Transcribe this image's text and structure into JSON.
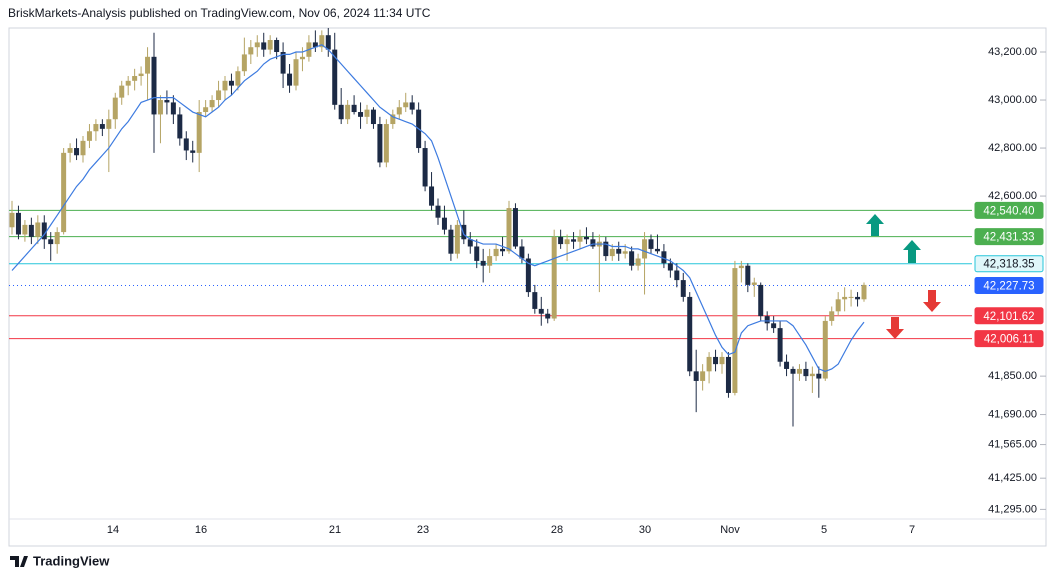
{
  "header": {
    "title": "BriskMarkets-Analysis published on TradingView.com, Nov 06, 2024 11:34 UTC"
  },
  "chart_data": {
    "type": "candlestick",
    "ylim": [
      41230,
      43300
    ],
    "yticks": [
      {
        "value": 43200,
        "label": "43,200.00"
      },
      {
        "value": 43000,
        "label": "43,000.00"
      },
      {
        "value": 42800,
        "label": "42,800.00"
      },
      {
        "value": 42600,
        "label": "42,600.00"
      },
      {
        "value": 41850,
        "label": "41,850.00"
      },
      {
        "value": 41690,
        "label": "41,690.00"
      },
      {
        "value": 41565,
        "label": "41,565.00"
      },
      {
        "value": 41425,
        "label": "41,425.00"
      },
      {
        "value": 41295,
        "label": "41,295.00"
      }
    ],
    "xtick_labels": [
      "14",
      "16",
      "21",
      "23",
      "28",
      "30",
      "Nov",
      "5",
      "7"
    ],
    "up_color": "#b5a464",
    "down_color": "#1c2a45",
    "ohlc": [
      [
        42470,
        42580,
        42440,
        42530
      ],
      [
        42530,
        42560,
        42420,
        42440
      ],
      [
        42440,
        42500,
        42410,
        42480
      ],
      [
        42480,
        42510,
        42400,
        42430
      ],
      [
        42430,
        42520,
        42400,
        42490
      ],
      [
        42490,
        42520,
        42380,
        42420
      ],
      [
        42420,
        42450,
        42330,
        42400
      ],
      [
        42400,
        42470,
        42360,
        42450
      ],
      [
        42450,
        42800,
        42440,
        42780
      ],
      [
        42780,
        42820,
        42740,
        42800
      ],
      [
        42800,
        42840,
        42750,
        42770
      ],
      [
        42770,
        42850,
        42740,
        42830
      ],
      [
        42830,
        42900,
        42800,
        42870
      ],
      [
        42870,
        42920,
        42830,
        42900
      ],
      [
        42900,
        42920,
        42850,
        42880
      ],
      [
        42880,
        42960,
        42700,
        42920
      ],
      [
        42920,
        43030,
        42880,
        43010
      ],
      [
        43010,
        43080,
        42980,
        43060
      ],
      [
        43060,
        43100,
        43020,
        43080
      ],
      [
        43080,
        43130,
        43040,
        43100
      ],
      [
        43100,
        43140,
        43060,
        43110
      ],
      [
        43110,
        43220,
        43000,
        43180
      ],
      [
        43180,
        43280,
        42780,
        42940
      ],
      [
        42940,
        43020,
        42820,
        43000
      ],
      [
        43000,
        43040,
        42940,
        42990
      ],
      [
        42990,
        43020,
        42900,
        42940
      ],
      [
        42940,
        42970,
        42810,
        42840
      ],
      [
        42840,
        42870,
        42750,
        42790
      ],
      [
        42790,
        42830,
        42740,
        42780
      ],
      [
        42780,
        43000,
        42700,
        42950
      ],
      [
        42950,
        43000,
        42930,
        42970
      ],
      [
        42970,
        43020,
        42950,
        43000
      ],
      [
        43000,
        43080,
        42970,
        43040
      ],
      [
        43040,
        43100,
        43000,
        43080
      ],
      [
        43080,
        43110,
        43020,
        43060
      ],
      [
        43060,
        43140,
        43040,
        43120
      ],
      [
        43120,
        43260,
        43100,
        43190
      ],
      [
        43190,
        43250,
        43150,
        43220
      ],
      [
        43220,
        43270,
        43180,
        43240
      ],
      [
        43240,
        43280,
        43180,
        43210
      ],
      [
        43210,
        43270,
        43190,
        43250
      ],
      [
        43250,
        43260,
        43170,
        43200
      ],
      [
        43200,
        43240,
        43050,
        43110
      ],
      [
        43110,
        43150,
        43030,
        43060
      ],
      [
        43060,
        43200,
        43040,
        43170
      ],
      [
        43170,
        43220,
        43120,
        43180
      ],
      [
        43180,
        43270,
        43160,
        43240
      ],
      [
        43240,
        43290,
        43200,
        43220
      ],
      [
        43220,
        43290,
        43200,
        43270
      ],
      [
        43270,
        43300,
        43180,
        43210
      ],
      [
        43210,
        43280,
        42960,
        42980
      ],
      [
        42980,
        43050,
        42900,
        42920
      ],
      [
        42920,
        43000,
        42900,
        42980
      ],
      [
        42980,
        43020,
        42940,
        42950
      ],
      [
        42950,
        42990,
        42880,
        42930
      ],
      [
        42930,
        42980,
        42900,
        42960
      ],
      [
        42960,
        42970,
        42880,
        42900
      ],
      [
        42900,
        42930,
        42720,
        42740
      ],
      [
        42740,
        42920,
        42720,
        42900
      ],
      [
        42900,
        42960,
        42880,
        42940
      ],
      [
        42940,
        43000,
        42920,
        42970
      ],
      [
        42970,
        43030,
        42950,
        42990
      ],
      [
        42990,
        43020,
        42940,
        42960
      ],
      [
        42960,
        42990,
        42780,
        42800
      ],
      [
        42800,
        42830,
        42620,
        42640
      ],
      [
        42640,
        42700,
        42540,
        42560
      ],
      [
        42560,
        42590,
        42480,
        42510
      ],
      [
        42510,
        42560,
        42440,
        42460
      ],
      [
        42460,
        42480,
        42330,
        42360
      ],
      [
        42360,
        42500,
        42340,
        42480
      ],
      [
        42480,
        42540,
        42400,
        42420
      ],
      [
        42420,
        42450,
        42360,
        42390
      ],
      [
        42390,
        42420,
        42300,
        42330
      ],
      [
        42330,
        42380,
        42240,
        42310
      ],
      [
        42310,
        42380,
        42280,
        42350
      ],
      [
        42350,
        42400,
        42330,
        42380
      ],
      [
        42380,
        42430,
        42350,
        42370
      ],
      [
        42370,
        42580,
        42360,
        42550
      ],
      [
        42550,
        42570,
        42380,
        42390
      ],
      [
        42390,
        42420,
        42320,
        42340
      ],
      [
        42340,
        42360,
        42180,
        42200
      ],
      [
        42200,
        42230,
        42110,
        42130
      ],
      [
        42130,
        42180,
        42060,
        42110
      ],
      [
        42110,
        42130,
        42070,
        42090
      ],
      [
        42090,
        42460,
        42080,
        42430
      ],
      [
        42430,
        42460,
        42380,
        42400
      ],
      [
        42400,
        42440,
        42330,
        42420
      ],
      [
        42420,
        42450,
        42380,
        42410
      ],
      [
        42410,
        42460,
        42380,
        42430
      ],
      [
        42430,
        42470,
        42400,
        42420
      ],
      [
        42420,
        42450,
        42380,
        42390
      ],
      [
        42390,
        42440,
        42200,
        42410
      ],
      [
        42410,
        42430,
        42330,
        42350
      ],
      [
        42350,
        42400,
        42330,
        42380
      ],
      [
        42380,
        42410,
        42330,
        42360
      ],
      [
        42360,
        42400,
        42340,
        42370
      ],
      [
        42370,
        42390,
        42290,
        42310
      ],
      [
        42310,
        42360,
        42290,
        42340
      ],
      [
        42340,
        42450,
        42190,
        42420
      ],
      [
        42420,
        42440,
        42360,
        42380
      ],
      [
        42380,
        42440,
        42360,
        42370
      ],
      [
        42370,
        42400,
        42300,
        42320
      ],
      [
        42320,
        42340,
        42260,
        42290
      ],
      [
        42290,
        42320,
        42220,
        42250
      ],
      [
        42250,
        42280,
        42160,
        42180
      ],
      [
        42180,
        42200,
        41850,
        41870
      ],
      [
        41870,
        41960,
        41700,
        41830
      ],
      [
        41830,
        41900,
        41790,
        41870
      ],
      [
        41870,
        41950,
        41820,
        41930
      ],
      [
        41930,
        41960,
        41870,
        41900
      ],
      [
        41900,
        41950,
        41860,
        41930
      ],
      [
        41930,
        41950,
        41760,
        41780
      ],
      [
        41780,
        42330,
        41770,
        42300
      ],
      [
        42300,
        42330,
        42240,
        42310
      ],
      [
        42310,
        42320,
        42200,
        42230
      ],
      [
        42230,
        42260,
        42180,
        42240
      ],
      [
        42230,
        42240,
        42080,
        42100
      ],
      [
        42100,
        42120,
        42040,
        42070
      ],
      [
        42070,
        42100,
        42030,
        42050
      ],
      [
        42050,
        42080,
        41890,
        41910
      ],
      [
        41910,
        41940,
        41850,
        41880
      ],
      [
        41880,
        41890,
        41640,
        41860
      ],
      [
        41860,
        41900,
        41830,
        41880
      ],
      [
        41880,
        41910,
        41830,
        41850
      ],
      [
        41850,
        41890,
        41780,
        41860
      ],
      [
        41860,
        41890,
        41760,
        41840
      ],
      [
        41840,
        42100,
        41830,
        42080
      ],
      [
        42080,
        42140,
        42060,
        42120
      ],
      [
        42120,
        42200,
        42100,
        42170
      ],
      [
        42170,
        42220,
        42120,
        42180
      ],
      [
        42180,
        42210,
        42140,
        42180
      ],
      [
        42180,
        42200,
        42140,
        42170
      ],
      [
        42170,
        42240,
        42160,
        42230
      ]
    ],
    "ma": {
      "color": "#3d7be0",
      "values": [
        42290,
        42320,
        42350,
        42380,
        42410,
        42440,
        42480,
        42520,
        42560,
        42600,
        42640,
        42670,
        42710,
        42740,
        42770,
        42800,
        42840,
        42880,
        42910,
        42950,
        42990,
        43000,
        43010,
        43010,
        43010,
        43010,
        42990,
        42970,
        42950,
        42940,
        42930,
        42950,
        42970,
        43000,
        43020,
        43050,
        43080,
        43100,
        43120,
        43150,
        43170,
        43180,
        43190,
        43190,
        43200,
        43200,
        43210,
        43220,
        43230,
        43210,
        43180,
        43150,
        43120,
        43090,
        43060,
        43030,
        43000,
        42970,
        42950,
        42930,
        42920,
        42910,
        42900,
        42880,
        42860,
        42830,
        42760,
        42680,
        42600,
        42520,
        42440,
        42420,
        42410,
        42400,
        42400,
        42400,
        42390,
        42380,
        42360,
        42340,
        42320,
        42310,
        42320,
        42330,
        42340,
        42350,
        42360,
        42370,
        42380,
        42390,
        42400,
        42400,
        42400,
        42390,
        42390,
        42390,
        42380,
        42380,
        42370,
        42360,
        42350,
        42340,
        42330,
        42310,
        42290,
        42260,
        42200,
        42140,
        42080,
        42020,
        41970,
        41940,
        41950,
        42030,
        42060,
        42070,
        42080,
        42080,
        42080,
        42080,
        42080,
        42060,
        42020,
        41980,
        41930,
        41880,
        41870,
        41880,
        41900,
        41950,
        42000,
        42040,
        42075
      ]
    },
    "levels": [
      {
        "value": 42540.4,
        "label": "42,540.40",
        "color": "#4caf50",
        "label_fill": "#4caf50",
        "text_color": "#ffffff"
      },
      {
        "value": 42431.33,
        "label": "42,431.33",
        "color": "#4caf50",
        "label_fill": "#4caf50",
        "text_color": "#ffffff"
      },
      {
        "value": 42318.35,
        "label": "42,318.35",
        "color": "#26c6da",
        "label_fill": "#e0f7fa",
        "text_color": "#131722"
      },
      {
        "value": 42227.73,
        "label": "42,227.73",
        "color": "#2962ff",
        "label_fill": "#2962ff",
        "text_color": "#ffffff",
        "dotted": true
      },
      {
        "value": 42101.62,
        "label": "42,101.62",
        "color": "#f23645",
        "label_fill": "#f23645",
        "text_color": "#ffffff"
      },
      {
        "value": 42006.11,
        "label": "42,006.11",
        "color": "#f23645",
        "label_fill": "#f23645",
        "text_color": "#ffffff"
      }
    ]
  },
  "footer": {
    "brand": "TradingView"
  }
}
